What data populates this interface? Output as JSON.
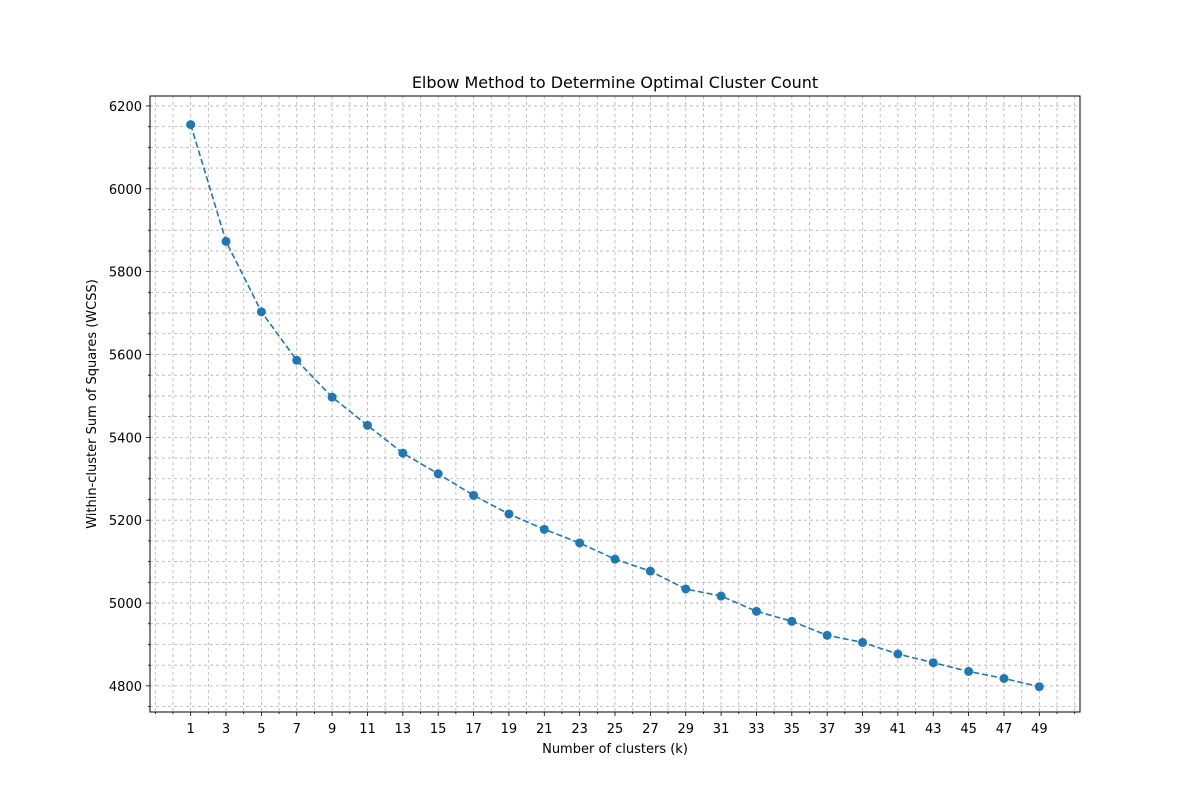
{
  "chart_data": {
    "type": "line",
    "title": "Elbow Method to Determine Optimal Cluster Count",
    "xlabel": "Number of clusters (k)",
    "ylabel": "Within-cluster Sum of Squares (WCSS)",
    "xlim": [
      -1.3,
      51.3
    ],
    "ylim": [
      4737,
      6224
    ],
    "x_ticks": [
      1,
      3,
      5,
      7,
      9,
      11,
      13,
      15,
      17,
      19,
      21,
      23,
      25,
      27,
      29,
      31,
      33,
      35,
      37,
      39,
      41,
      43,
      45,
      47,
      49
    ],
    "y_ticks": [
      4800,
      5000,
      5200,
      5400,
      5600,
      5800,
      6000,
      6200
    ],
    "grid": true,
    "grid_minor": true,
    "line_style": "dashed",
    "marker": "circle",
    "series_color": "#1f77b4",
    "series": [
      {
        "x": [
          1,
          3,
          5,
          7,
          9,
          11,
          13,
          15,
          17,
          19,
          21,
          23,
          25,
          27,
          29,
          31,
          33,
          35,
          37,
          39,
          41,
          43,
          45,
          47,
          49
        ],
        "values": [
          6155,
          5873,
          5703,
          5586,
          5497,
          5429,
          5362,
          5312,
          5260,
          5215,
          5178,
          5145,
          5106,
          5077,
          5034,
          5017,
          4980,
          4956,
          4922,
          4905,
          4877,
          4856,
          4835,
          4818,
          4798
        ]
      }
    ]
  }
}
